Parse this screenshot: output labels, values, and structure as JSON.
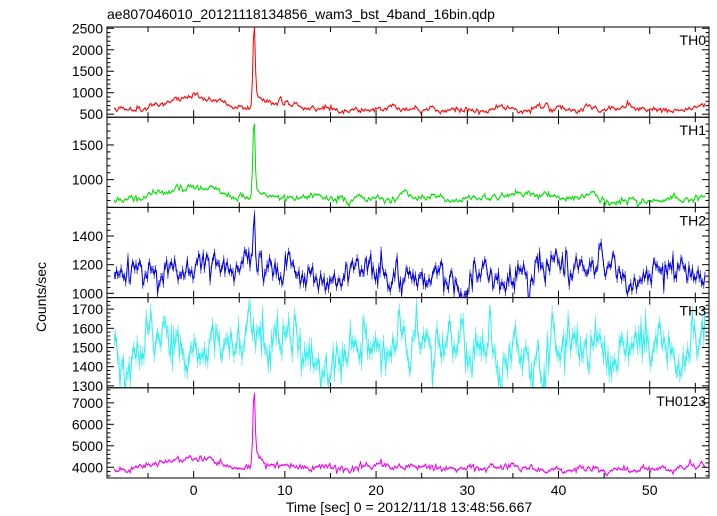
{
  "chart_data": {
    "type": "line",
    "title": "ae807046010_20121118134856_wam3_bst_4band_16bin.qdp",
    "xlabel": "Time [sec] 0 = 2012/11/18 13:48:56.667",
    "ylabel": "Counts/sec",
    "xlim": [
      -9.5,
      56.5
    ],
    "x_ticks": [
      0,
      10,
      20,
      30,
      40,
      50
    ],
    "grid": false,
    "panels": [
      {
        "name": "TH0",
        "color": "#ff0000",
        "ylim": [
          430,
          2530
        ],
        "y_ticks": [
          500,
          1000,
          1500,
          2000,
          2500
        ],
        "baseline": 620,
        "noise": 38,
        "hump_amp": 280,
        "spike_peak": 2450,
        "spike_width": 0.12,
        "decay_amp": 480,
        "decay_tau": 1.8,
        "extras": [
          {
            "x": 9.5,
            "a": 150,
            "w": 0.3
          }
        ],
        "seed": 11
      },
      {
        "name": "TH1",
        "color": "#00dd00",
        "ylim": [
          600,
          1900
        ],
        "y_ticks": [
          1000,
          1500
        ],
        "baseline": 720,
        "noise": 28,
        "hump_amp": 130,
        "spike_peak": 1820,
        "spike_width": 0.12,
        "decay_amp": 180,
        "decay_tau": 1.5,
        "extras": [],
        "seed": 23
      },
      {
        "name": "TH2",
        "color": "#0000dd",
        "ylim": [
          970,
          1600
        ],
        "y_ticks": [
          1000,
          1200,
          1400
        ],
        "y_tick_labels": [
          "1000",
          "1200",
          "1400"
        ],
        "baseline": 1150,
        "noise": 55,
        "hump_amp": 80,
        "spike_peak": 1560,
        "spike_width": 0.12,
        "decay_amp": 70,
        "decay_tau": 1.2,
        "extras": [
          {
            "x": 44.7,
            "a": 250,
            "w": 0.15
          }
        ],
        "seed": 37
      },
      {
        "name": "TH3",
        "color": "#33eeee",
        "ylim": [
          1290,
          1760
        ],
        "y_ticks": [
          1300,
          1400,
          1500,
          1600,
          1700
        ],
        "baseline": 1510,
        "noise": 70,
        "hump_amp": 0,
        "spike_peak": 0,
        "spike_width": 0.12,
        "decay_amp": 0,
        "decay_tau": 1,
        "extras": [],
        "seed": 53
      },
      {
        "name": "TH0123",
        "color": "#ee00ee",
        "ylim": [
          3500,
          7700
        ],
        "y_ticks": [
          4000,
          5000,
          6000,
          7000
        ],
        "baseline": 3950,
        "noise": 90,
        "hump_amp": 450,
        "spike_peak": 7400,
        "spike_width": 0.12,
        "decay_amp": 800,
        "decay_tau": 1.6,
        "extras": [
          {
            "x": 9.5,
            "a": 250,
            "w": 0.3
          }
        ],
        "seed": 71
      }
    ],
    "spike_x": 6.6,
    "hump_x": 0,
    "hump_width": 2.5,
    "bin": 0.125
  }
}
